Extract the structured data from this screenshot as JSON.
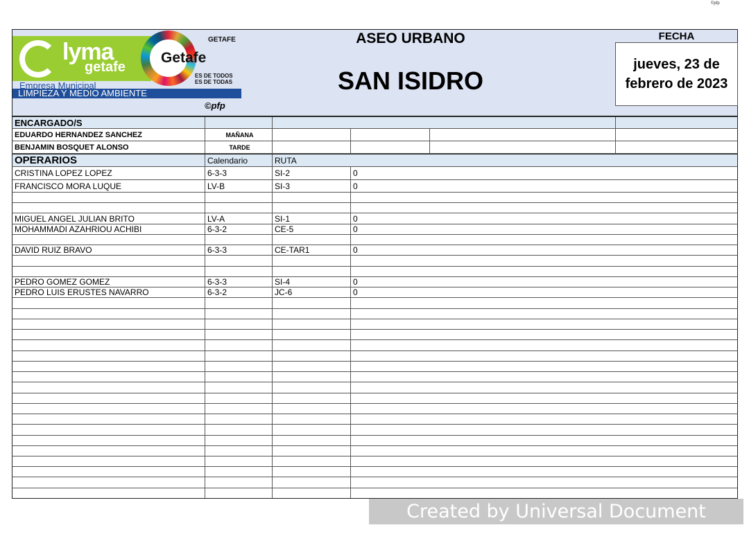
{
  "top_mark": "©pfp",
  "logo": {
    "brand": "lyma",
    "brand_sub": "getafe",
    "company": "Empresa Municipal",
    "department": "LIMPIEZA Y MEDIO AMBIENTE",
    "city": "Getafe",
    "ayuntamiento": "GETAFE",
    "motto": "ES DE TODOS ES DE TODAS",
    "copyright": "©pfp"
  },
  "header": {
    "title": "ASEO URBANO",
    "subtitle": "SAN ISIDRO",
    "date_label": "FECHA",
    "date": "jueves, 23 de febrero de 2023"
  },
  "encargados": {
    "label": "ENCARGADO/S",
    "rows": [
      {
        "name": "EDUARDO HERNANDEZ SANCHEZ",
        "shift": "MAÑANA"
      },
      {
        "name": "BENJAMIN BOSQUET ALONSO",
        "shift": "TARDE"
      }
    ]
  },
  "operarios": {
    "label": "OPERARIOS",
    "col_calendar": "Calendario",
    "col_route": "RUTA",
    "rows": [
      {
        "name": "CRISTINA LOPEZ LOPEZ",
        "cal": "6-3-3",
        "ruta": "SI-2",
        "val": "0"
      },
      {
        "name": "FRANCISCO MORA LUQUE",
        "cal": "LV-B",
        "ruta": "SI-3",
        "val": "0"
      },
      {
        "name": "",
        "cal": "",
        "ruta": "",
        "val": ""
      },
      {
        "name": "",
        "cal": "",
        "ruta": "",
        "val": ""
      },
      {
        "name": "MIGUEL ANGEL JULIAN BRITO",
        "cal": "LV-A",
        "ruta": "SI-1",
        "val": "0"
      },
      {
        "name": "MOHAMMADI AZAHRIOU ACHIBI",
        "cal": "6-3-2",
        "ruta": "CE-5",
        "val": "0"
      },
      {
        "name": "",
        "cal": "",
        "ruta": "",
        "val": ""
      },
      {
        "name": "DAVID RUIZ BRAVO",
        "cal": "6-3-3",
        "ruta": "CE-TAR1",
        "val": "0"
      },
      {
        "name": "",
        "cal": "",
        "ruta": "",
        "val": ""
      },
      {
        "name": "",
        "cal": "",
        "ruta": "",
        "val": ""
      },
      {
        "name": "PEDRO GOMEZ GOMEZ",
        "cal": "6-3-3",
        "ruta": "SI-4",
        "val": "0"
      },
      {
        "name": "PEDRO LUIS ERUSTES NAVARRO",
        "cal": "6-3-2",
        "ruta": "JC-6",
        "val": "0"
      }
    ],
    "blank_rows_after": 19
  },
  "watermark": "Created by Universal Document Converter"
}
